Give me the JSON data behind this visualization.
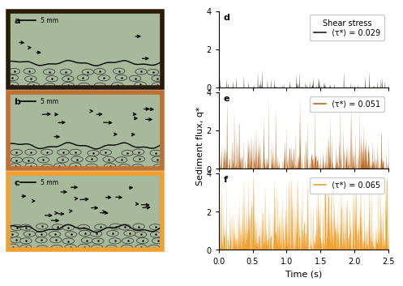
{
  "panel_labels": [
    "a",
    "b",
    "c",
    "d",
    "e",
    "f"
  ],
  "scale_bar": "5 mm",
  "shear_stress_label": "Shear stress",
  "tau_values": [
    0.029,
    0.051,
    0.065
  ],
  "xlabel": "Time (s)",
  "ylabel": "Sediment flux, q*",
  "xlim": [
    0.0,
    2.5
  ],
  "ylim": [
    0,
    4
  ],
  "yticks": [
    0,
    2,
    4
  ],
  "xticks": [
    0.0,
    0.5,
    1.0,
    1.5,
    2.0,
    2.5
  ],
  "flume_bg_color": "#a8b89a",
  "flume_border_colors": [
    "#2a1a08",
    "#c07030",
    "#f0a030"
  ],
  "line_colors": [
    "#2a1a08",
    "#b86820",
    "#f0a030"
  ],
  "n_points": 600,
  "seeds_flux": [
    11,
    22,
    33
  ]
}
